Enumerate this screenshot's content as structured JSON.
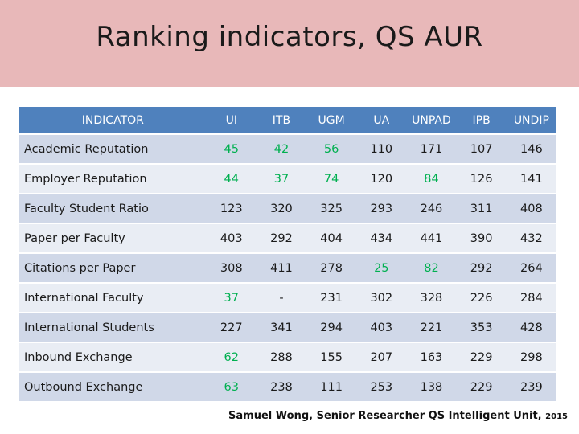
{
  "title": "Ranking indicators, QS AUR",
  "colors": {
    "header": "#4f81bd",
    "row_odd": "#d0d8e8",
    "row_even": "#e9edf4",
    "highlight": "#00b050",
    "title_band": "#e8b8b9"
  },
  "table": {
    "headers": [
      "INDICATOR",
      "UI",
      "ITB",
      "UGM",
      "UA",
      "UNPAD",
      "IPB",
      "UNDIP"
    ],
    "rows": [
      {
        "label": "Academic Reputation",
        "values": [
          "45",
          "42",
          "56",
          "110",
          "171",
          "107",
          "146"
        ],
        "highlight": [
          true,
          true,
          true,
          false,
          false,
          false,
          false
        ]
      },
      {
        "label": "Employer Reputation",
        "values": [
          "44",
          "37",
          "74",
          "120",
          "84",
          "126",
          "141"
        ],
        "highlight": [
          true,
          true,
          true,
          false,
          true,
          false,
          false
        ]
      },
      {
        "label": "Faculty Student Ratio",
        "values": [
          "123",
          "320",
          "325",
          "293",
          "246",
          "311",
          "408"
        ],
        "highlight": [
          false,
          false,
          false,
          false,
          false,
          false,
          false
        ]
      },
      {
        "label": "Paper per Faculty",
        "values": [
          "403",
          "292",
          "404",
          "434",
          "441",
          "390",
          "432"
        ],
        "highlight": [
          false,
          false,
          false,
          false,
          false,
          false,
          false
        ]
      },
      {
        "label": "Citations per Paper",
        "values": [
          "308",
          "411",
          "278",
          "25",
          "82",
          "292",
          "264"
        ],
        "highlight": [
          false,
          false,
          false,
          true,
          true,
          false,
          false
        ]
      },
      {
        "label": "International Faculty",
        "values": [
          "37",
          "-",
          "231",
          "302",
          "328",
          "226",
          "284"
        ],
        "highlight": [
          true,
          false,
          false,
          false,
          false,
          false,
          false
        ]
      },
      {
        "label": "International Students",
        "values": [
          "227",
          "341",
          "294",
          "403",
          "221",
          "353",
          "428"
        ],
        "highlight": [
          false,
          false,
          false,
          false,
          false,
          false,
          false
        ]
      },
      {
        "label": "Inbound Exchange",
        "values": [
          "62",
          "288",
          "155",
          "207",
          "163",
          "229",
          "298"
        ],
        "highlight": [
          true,
          false,
          false,
          false,
          false,
          false,
          false
        ]
      },
      {
        "label": "Outbound Exchange",
        "values": [
          "63",
          "238",
          "111",
          "253",
          "138",
          "229",
          "239"
        ],
        "highlight": [
          true,
          false,
          false,
          false,
          false,
          false,
          false
        ]
      }
    ]
  },
  "credit": {
    "text": "Samuel Wong, Senior Researcher QS Intelligent Unit,",
    "year": "2015"
  }
}
